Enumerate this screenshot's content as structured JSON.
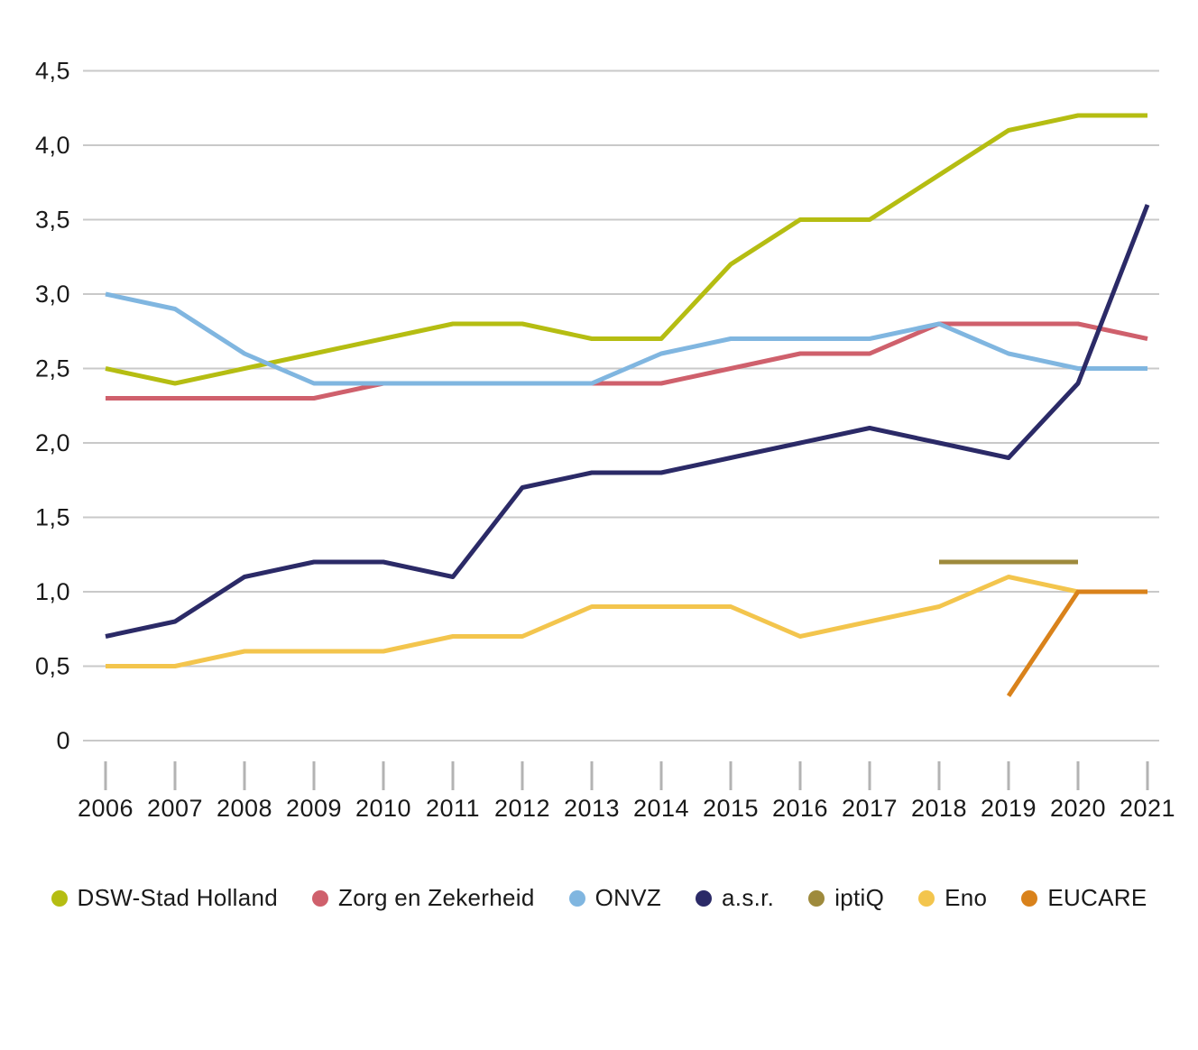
{
  "chart_data": {
    "type": "line",
    "title": "",
    "xlabel": "",
    "ylabel": "",
    "x": [
      2006,
      2007,
      2008,
      2009,
      2010,
      2011,
      2012,
      2013,
      2014,
      2015,
      2016,
      2017,
      2018,
      2019,
      2020,
      2021
    ],
    "ylim": [
      0,
      4.5
    ],
    "grid": "horizontal",
    "legend_position": "bottom",
    "y_ticks": [
      {
        "value": 0,
        "label": "0"
      },
      {
        "value": 0.5,
        "label": "0,5"
      },
      {
        "value": 1.0,
        "label": "1,0"
      },
      {
        "value": 1.5,
        "label": "1,5"
      },
      {
        "value": 2.0,
        "label": "2,0"
      },
      {
        "value": 2.5,
        "label": "2,5"
      },
      {
        "value": 3.0,
        "label": "3,0"
      },
      {
        "value": 3.5,
        "label": "3,5"
      },
      {
        "value": 4.0,
        "label": "4,0"
      },
      {
        "value": 4.5,
        "label": "4,5"
      }
    ],
    "series": [
      {
        "name": "DSW-Stad Holland",
        "color": "#b5bd12",
        "values": [
          2.5,
          2.4,
          2.5,
          2.6,
          2.7,
          2.8,
          2.8,
          2.7,
          2.7,
          3.2,
          3.5,
          3.5,
          3.8,
          4.1,
          4.2,
          4.2
        ]
      },
      {
        "name": "Zorg en Zekerheid",
        "color": "#cf606c",
        "values": [
          2.3,
          2.3,
          2.3,
          2.3,
          2.4,
          2.4,
          2.4,
          2.4,
          2.4,
          2.5,
          2.6,
          2.6,
          2.8,
          2.8,
          2.8,
          2.7
        ]
      },
      {
        "name": "ONVZ",
        "color": "#80b6e0",
        "values": [
          3.0,
          2.9,
          2.6,
          2.4,
          2.4,
          2.4,
          2.4,
          2.4,
          2.6,
          2.7,
          2.7,
          2.7,
          2.8,
          2.6,
          2.5,
          2.5
        ]
      },
      {
        "name": "a.s.r.",
        "color": "#2b2a67",
        "values": [
          0.7,
          0.8,
          1.1,
          1.2,
          1.2,
          1.1,
          1.7,
          1.8,
          1.8,
          1.9,
          2.0,
          2.1,
          2.0,
          1.9,
          2.4,
          3.6
        ]
      },
      {
        "name": "iptiQ",
        "color": "#9e8a3c",
        "values": [
          null,
          null,
          null,
          null,
          null,
          null,
          null,
          null,
          null,
          null,
          null,
          null,
          1.2,
          1.2,
          1.2,
          null
        ]
      },
      {
        "name": "Eno",
        "color": "#f3c54d",
        "values": [
          0.5,
          0.5,
          0.6,
          0.6,
          0.6,
          0.7,
          0.7,
          0.9,
          0.9,
          0.9,
          0.7,
          0.8,
          0.9,
          1.1,
          1.0,
          null
        ]
      },
      {
        "name": "EUCARE",
        "color": "#d9821b",
        "values": [
          null,
          null,
          null,
          null,
          null,
          null,
          null,
          null,
          null,
          null,
          null,
          null,
          null,
          0.3,
          1.0,
          1.0
        ]
      }
    ],
    "colors": {
      "gridline": "#c9c9c9",
      "tick": "#b3b3b3",
      "text": "#1a1a1a"
    }
  }
}
